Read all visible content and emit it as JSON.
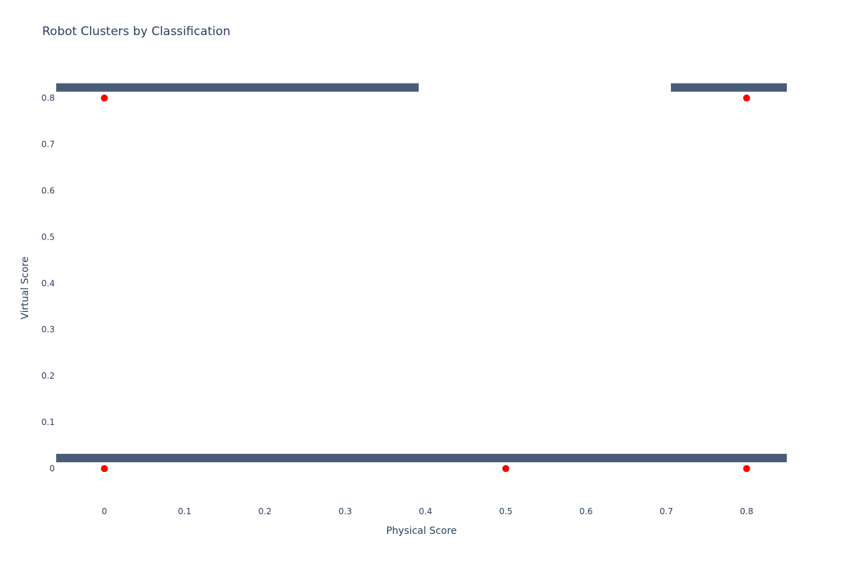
{
  "chart_data": {
    "type": "scatter",
    "title": "Robot Clusters by Classification",
    "xlabel": "Physical Score",
    "ylabel": "Virtual Score",
    "xlim": [
      -0.06,
      0.85
    ],
    "ylim": [
      -0.05,
      0.86
    ],
    "x_ticks": [
      0,
      0.1,
      0.2,
      0.3,
      0.4,
      0.5,
      0.6,
      0.7,
      0.8
    ],
    "y_ticks": [
      0,
      0.1,
      0.2,
      0.3,
      0.4,
      0.5,
      0.6,
      0.7,
      0.8
    ],
    "grid": false,
    "marker_color": "#ff0000",
    "text_color": "#2a3f5f",
    "points": [
      {
        "x": 0,
        "y": 0.8
      },
      {
        "x": 0.8,
        "y": 0.8
      },
      {
        "x": 0,
        "y": 0
      },
      {
        "x": 0.5,
        "y": 0
      },
      {
        "x": 0.8,
        "y": 0
      }
    ]
  }
}
